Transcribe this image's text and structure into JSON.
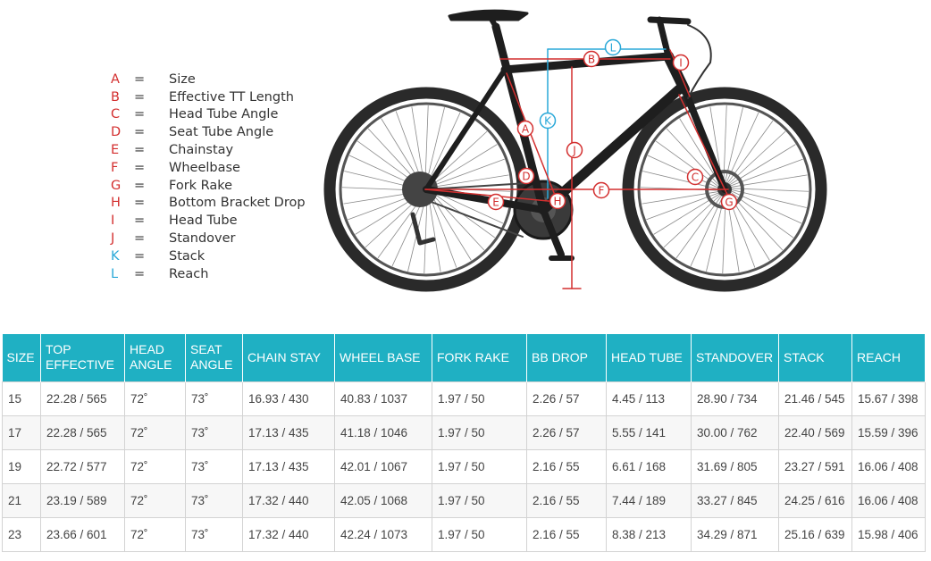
{
  "legend": {
    "items": [
      {
        "letter": "A",
        "eq": "=",
        "label": "Size",
        "color": "#d32f2f"
      },
      {
        "letter": "B",
        "eq": "=",
        "label": "Effective TT Length",
        "color": "#d32f2f"
      },
      {
        "letter": "C",
        "eq": "=",
        "label": "Head Tube Angle",
        "color": "#d32f2f"
      },
      {
        "letter": "D",
        "eq": "=",
        "label": "Seat Tube Angle",
        "color": "#d32f2f"
      },
      {
        "letter": "E",
        "eq": "=",
        "label": "Chainstay",
        "color": "#d32f2f"
      },
      {
        "letter": "F",
        "eq": "=",
        "label": "Wheelbase",
        "color": "#d32f2f"
      },
      {
        "letter": "G",
        "eq": "=",
        "label": "Fork Rake",
        "color": "#d32f2f"
      },
      {
        "letter": "H",
        "eq": "=",
        "label": "Bottom Bracket Drop",
        "color": "#d32f2f"
      },
      {
        "letter": "I",
        "eq": "=",
        "label": "Head Tube",
        "color": "#d32f2f"
      },
      {
        "letter": "J",
        "eq": "=",
        "label": "Standover",
        "color": "#d32f2f"
      },
      {
        "letter": "K",
        "eq": "=",
        "label": "Stack",
        "color": "#29a8d8"
      },
      {
        "letter": "L",
        "eq": "=",
        "label": "Reach",
        "color": "#29a8d8"
      }
    ]
  },
  "diagram": {
    "callouts": [
      "L",
      "B",
      "I",
      "K",
      "A",
      "J",
      "D",
      "C",
      "F",
      "H",
      "E",
      "G"
    ],
    "colors": {
      "measure_red": "#d32f2f",
      "measure_blue": "#29a8d8",
      "frame": "#1e1e1e"
    }
  },
  "table": {
    "header_color": "#1fb0c3",
    "columns": [
      {
        "line1": "SIZE",
        "line2": ""
      },
      {
        "line1": "TOP",
        "line2": "EFFECTIVE"
      },
      {
        "line1": "HEAD",
        "line2": "ANGLE"
      },
      {
        "line1": "SEAT",
        "line2": "ANGLE"
      },
      {
        "line1": "CHAIN STAY",
        "line2": ""
      },
      {
        "line1": "WHEEL BASE",
        "line2": ""
      },
      {
        "line1": "FORK RAKE",
        "line2": ""
      },
      {
        "line1": "BB DROP",
        "line2": ""
      },
      {
        "line1": "HEAD TUBE",
        "line2": ""
      },
      {
        "line1": "STANDOVER",
        "line2": ""
      },
      {
        "line1": "STACK",
        "line2": ""
      },
      {
        "line1": "REACH",
        "line2": ""
      }
    ],
    "rows": [
      [
        "15",
        "22.28 / 565",
        "72˚",
        "73˚",
        "16.93 / 430",
        "40.83 / 1037",
        "1.97 / 50",
        "2.26 / 57",
        "4.45 / 113",
        "28.90 / 734",
        "21.46 / 545",
        "15.67 / 398"
      ],
      [
        "17",
        "22.28 / 565",
        "72˚",
        "73˚",
        "17.13 / 435",
        "41.18 / 1046",
        "1.97 / 50",
        "2.26 / 57",
        "5.55 / 141",
        "30.00 / 762",
        "22.40 / 569",
        "15.59 / 396"
      ],
      [
        "19",
        "22.72 / 577",
        "72˚",
        "73˚",
        "17.13 / 435",
        "42.01 / 1067",
        "1.97 / 50",
        "2.16 / 55",
        "6.61 / 168",
        "31.69 / 805",
        "23.27 / 591",
        "16.06 / 408"
      ],
      [
        "21",
        "23.19 / 589",
        "72˚",
        "73˚",
        "17.32 / 440",
        "42.05 / 1068",
        "1.97 / 50",
        "2.16 / 55",
        "7.44 / 189",
        "33.27 / 845",
        "24.25 / 616",
        "16.06 / 408"
      ],
      [
        "23",
        "23.66 / 601",
        "72˚",
        "73˚",
        "17.32 / 440",
        "42.24 / 1073",
        "1.97 / 50",
        "2.16 / 55",
        "8.38 / 213",
        "34.29 / 871",
        "25.16 / 639",
        "15.98 / 406"
      ]
    ]
  }
}
